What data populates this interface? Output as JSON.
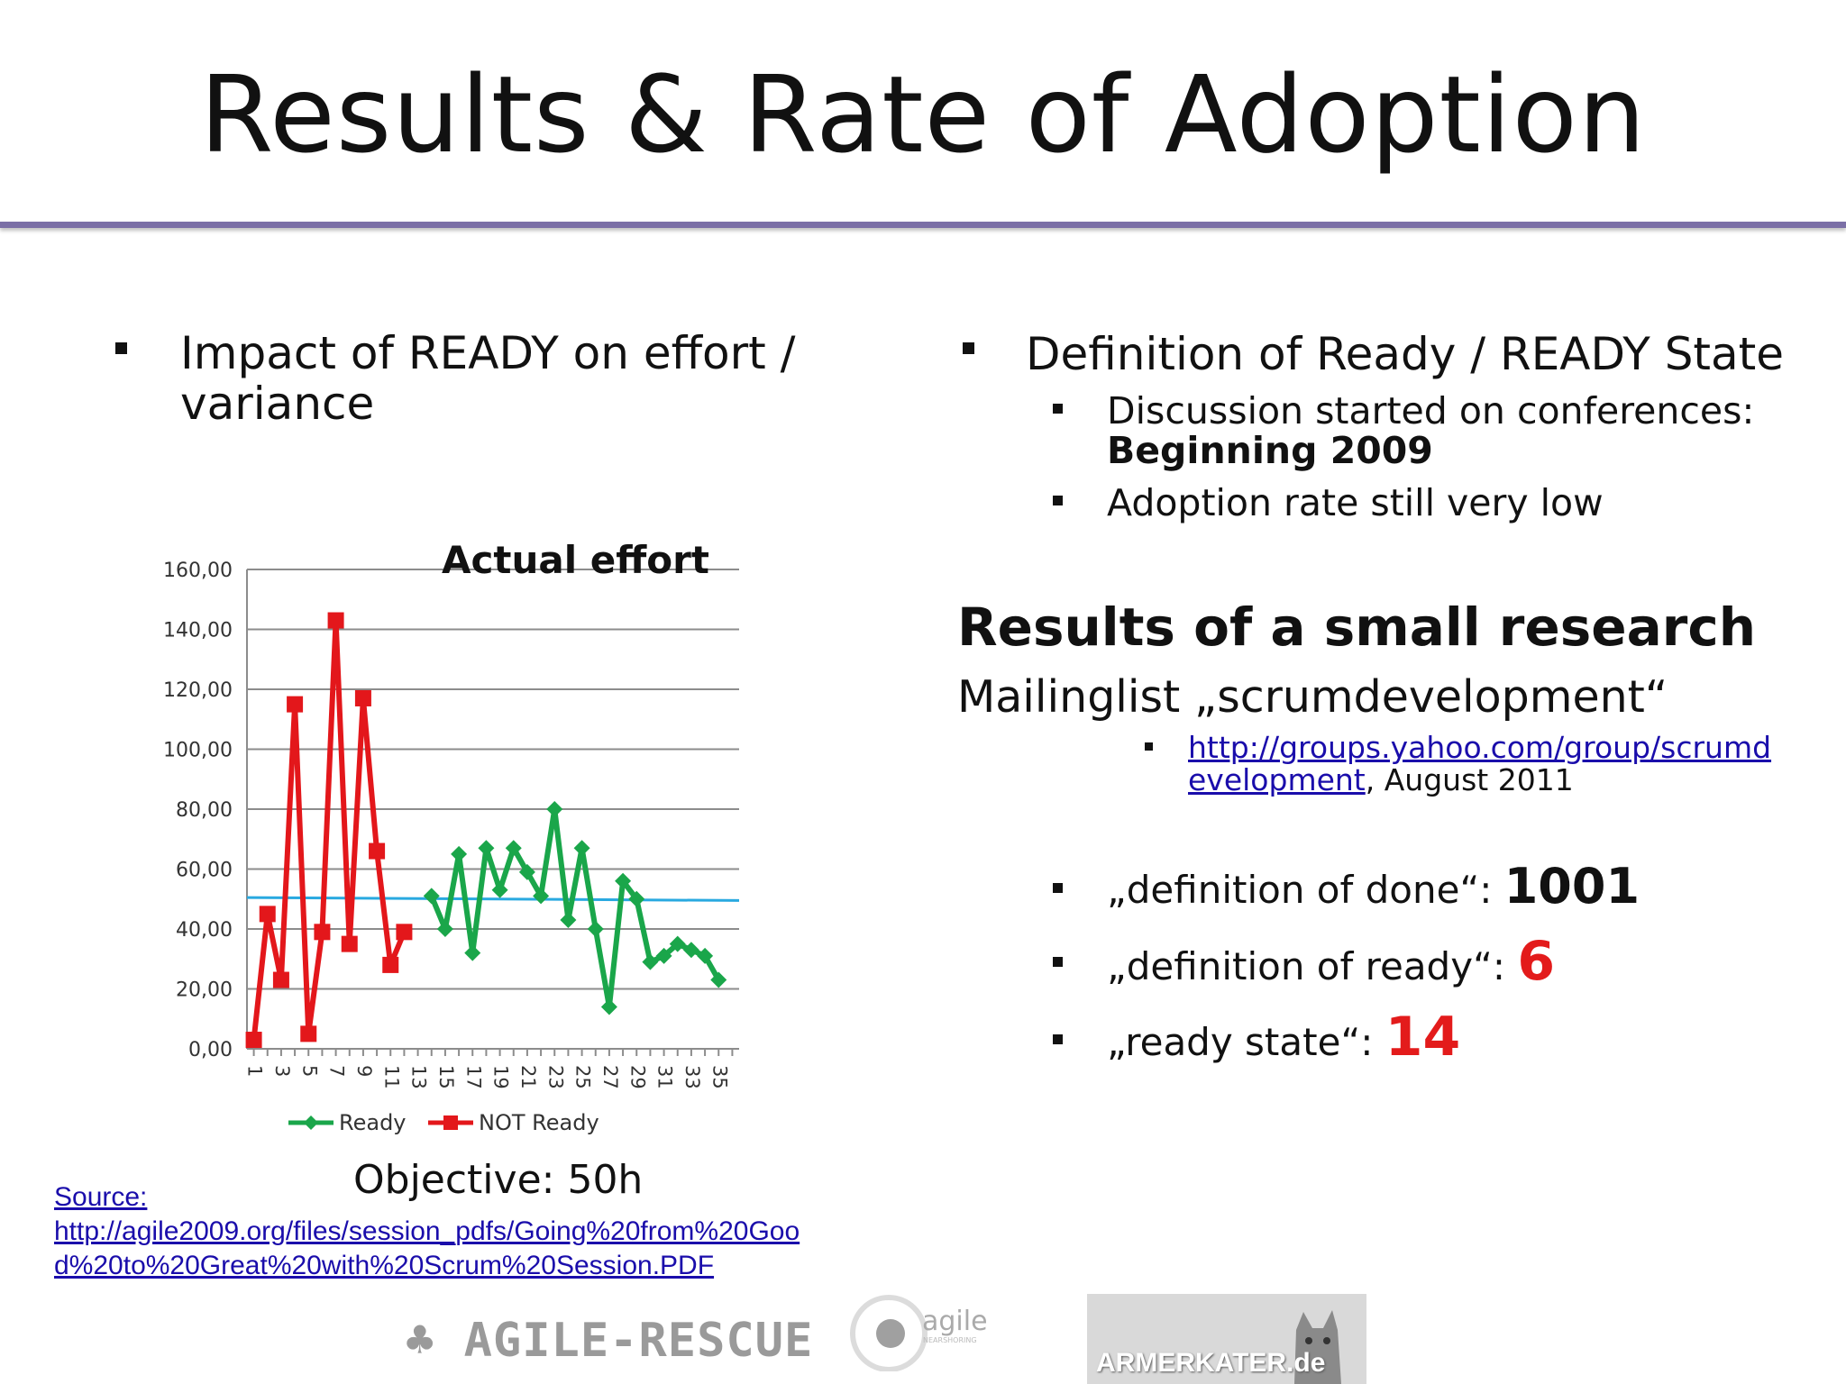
{
  "slide": {
    "title": "Results & Rate of Adoption"
  },
  "left": {
    "heading_line1": "Impact of READY on effort /",
    "heading_line2": "variance",
    "objective": "Objective:  50h",
    "source_label": "Source:",
    "source_url_line1": "http://agile2009.org/files/session_pdfs/Going%20from%20Goo",
    "source_url_line2": "d%20to%20Great%20with%20Scrum%20Session.PDF"
  },
  "right": {
    "heading": "Definition of Ready / READY State",
    "sub1_line1": "Discussion started  on conferences:",
    "sub1_line2": "Beginning 2009",
    "sub2": "Adoption rate still very low",
    "research_title": "Results of a small research",
    "research_sub": "Mailinglist „scrumdevelopment“",
    "link_line1": "http://groups.yahoo.com/group/scrumd",
    "link_line2": "evelopment",
    "link_suffix": ", August 2011",
    "stats": [
      {
        "label": "„definition of done“: ",
        "value": "1001"
      },
      {
        "label": "„definition of ready“: ",
        "value": "6"
      },
      {
        "label": "„ready state“: ",
        "value": "14"
      }
    ]
  },
  "logos": {
    "agile_rescue": "♣ AGILE-RESCUE",
    "agile_nearshoring": "agile",
    "agile_nearshoring_sub": "NEARSHORING",
    "armerkater": "ARMERKATER.de"
  },
  "colors": {
    "ready": "#1aa64a",
    "not_ready": "#e3171b",
    "objective_line": "#29a9e0",
    "title_rule": "#7b6fa6",
    "highlight_red": "#e31b1b"
  },
  "chart_data": {
    "type": "line",
    "title": "Actual effort",
    "ylim": [
      0,
      160
    ],
    "yticks": [
      "0,00",
      "20,00",
      "40,00",
      "60,00",
      "80,00",
      "100,00",
      "120,00",
      "140,00",
      "160,00"
    ],
    "x": [
      1,
      2,
      3,
      4,
      5,
      6,
      7,
      8,
      9,
      10,
      11,
      12,
      13,
      14,
      15,
      16,
      17,
      18,
      19,
      20,
      21,
      22,
      23,
      24,
      25,
      26,
      27,
      28,
      29,
      30,
      31,
      32,
      33,
      34,
      35,
      36
    ],
    "xtick_labels": [
      "1",
      "3",
      "5",
      "7",
      "9",
      "11",
      "13",
      "15",
      "17",
      "19",
      "21",
      "23",
      "25",
      "27",
      "29",
      "31",
      "33",
      "35"
    ],
    "series": [
      {
        "name": "NOT Ready",
        "x": [
          1,
          2,
          3,
          4,
          5,
          6,
          7,
          8,
          9,
          10,
          11,
          12,
          13,
          14
        ],
        "values": [
          3,
          45,
          23,
          115,
          5,
          39,
          143,
          35,
          117,
          66,
          28,
          39,
          null,
          null
        ]
      },
      {
        "name": "Ready",
        "x": [
          14,
          15,
          16,
          17,
          18,
          19,
          20,
          21,
          22,
          23,
          24,
          25,
          26,
          27,
          28,
          29,
          30,
          31,
          32,
          33,
          34,
          35,
          36
        ],
        "values": [
          51,
          40,
          65,
          32,
          67,
          53,
          67,
          59,
          51,
          80,
          43,
          67,
          40,
          14,
          56,
          50,
          29,
          31,
          35,
          33,
          31,
          23,
          null
        ]
      }
    ],
    "reference_line": {
      "y_start": 50.5,
      "y_end": 49.5
    },
    "legend": [
      "Ready",
      "NOT Ready"
    ],
    "legend_position": "bottom",
    "grid": true
  }
}
